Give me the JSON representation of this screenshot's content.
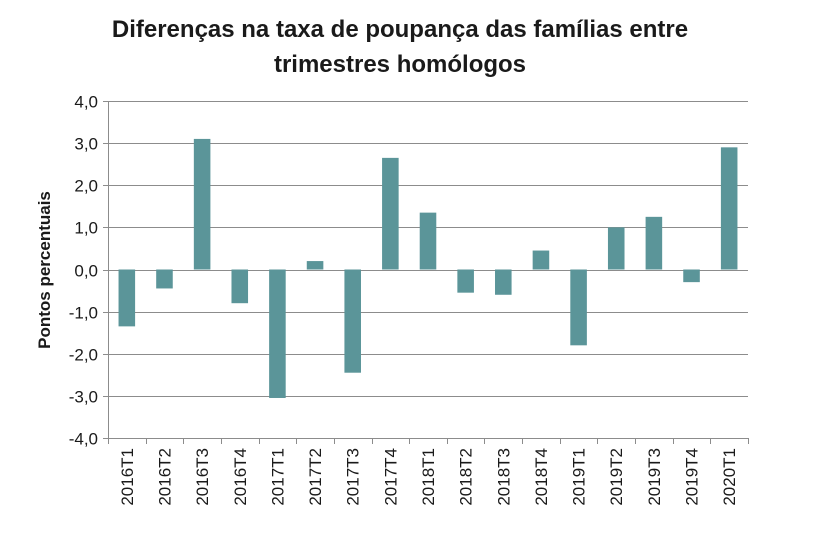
{
  "chart_data": {
    "type": "bar",
    "title_lines": [
      "Diferenças na taxa de poupança das famílias entre",
      "trimestres homólogos"
    ],
    "ylabel": "Pontos percentuais",
    "xlabel": "",
    "categories": [
      "2016T1",
      "2016T2",
      "2016T3",
      "2016T4",
      "2017T1",
      "2017T2",
      "2017T3",
      "2017T4",
      "2018T1",
      "2018T2",
      "2018T3",
      "2018T4",
      "2019T1",
      "2019T2",
      "2019T3",
      "2019T4",
      "2020T1"
    ],
    "values": [
      -1.35,
      -0.45,
      3.1,
      -0.8,
      -3.05,
      0.2,
      -2.45,
      2.65,
      1.35,
      -0.55,
      -0.6,
      0.45,
      -1.8,
      1.0,
      1.25,
      -0.3,
      2.9
    ],
    "ylim": [
      -4.0,
      4.0
    ],
    "yticks": [
      4.0,
      3.0,
      2.0,
      1.0,
      0.0,
      -1.0,
      -2.0,
      -3.0,
      -4.0
    ],
    "ytick_labels": [
      "4,0",
      "3,0",
      "2,0",
      "1,0",
      "0,0",
      "-1,0",
      "-2,0",
      "-3,0",
      "-4,0"
    ],
    "grid": true,
    "bar_color": "#5b9599",
    "grid_color": "#8c8c8c"
  }
}
